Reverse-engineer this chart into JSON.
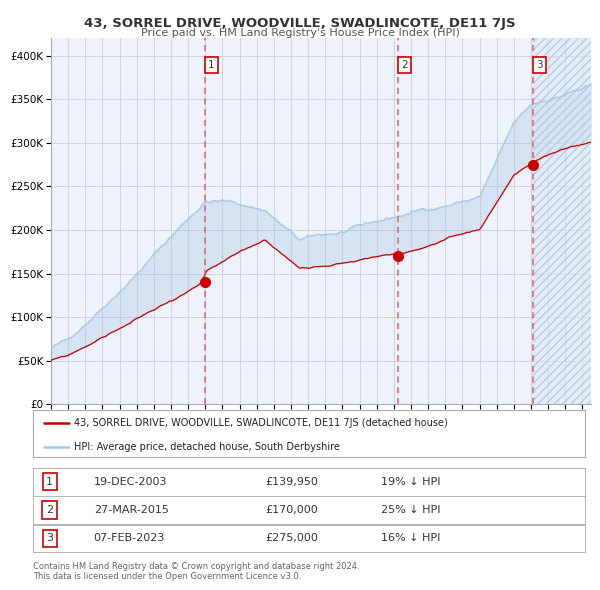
{
  "title": "43, SORREL DRIVE, WOODVILLE, SWADLINCOTE, DE11 7JS",
  "subtitle": "Price paid vs. HM Land Registry's House Price Index (HPI)",
  "hpi_color": "#a8c8e8",
  "price_color": "#cc0000",
  "sale_color": "#cc0000",
  "vline_color": "#e06060",
  "bg_color": "#ffffff",
  "plot_bg": "#eef2fa",
  "grid_color": "#c8d0dc",
  "sales": [
    {
      "date_num": 2003.97,
      "price": 139950,
      "label": "1",
      "date_str": "19-DEC-2003",
      "pct": "19% ↓ HPI"
    },
    {
      "date_num": 2015.23,
      "price": 170000,
      "label": "2",
      "date_str": "27-MAR-2015",
      "pct": "25% ↓ HPI"
    },
    {
      "date_num": 2023.1,
      "price": 275000,
      "label": "3",
      "date_str": "07-FEB-2023",
      "pct": "16% ↓ HPI"
    }
  ],
  "ylim": [
    0,
    420000
  ],
  "xlim_start": 1995.0,
  "xlim_end": 2026.5,
  "xticks": [
    1995,
    1996,
    1997,
    1998,
    1999,
    2000,
    2001,
    2002,
    2003,
    2004,
    2005,
    2006,
    2007,
    2008,
    2009,
    2010,
    2011,
    2012,
    2013,
    2014,
    2015,
    2016,
    2017,
    2018,
    2019,
    2020,
    2021,
    2022,
    2023,
    2024,
    2025,
    2026
  ],
  "yticks": [
    0,
    50000,
    100000,
    150000,
    200000,
    250000,
    300000,
    350000,
    400000
  ],
  "legend_label_price": "43, SORREL DRIVE, WOODVILLE, SWADLINCOTE, DE11 7JS (detached house)",
  "legend_label_hpi": "HPI: Average price, detached house, South Derbyshire",
  "footnote": "Contains HM Land Registry data © Crown copyright and database right 2024.\nThis data is licensed under the Open Government Licence v3.0."
}
